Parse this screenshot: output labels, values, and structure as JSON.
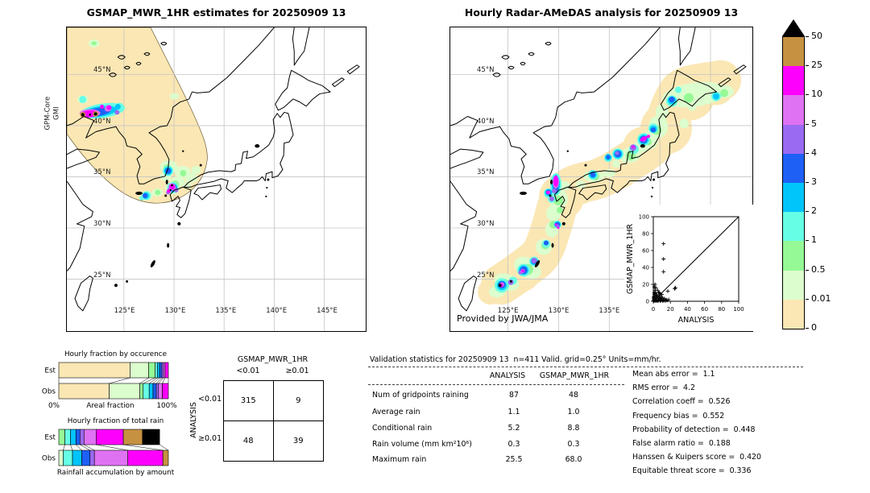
{
  "palette": {
    "wheat": "#fbe7b4",
    "palegreen": "#dcfdcd",
    "lightgreen": "#95f995",
    "aqua": "#66ffe6",
    "skyblue": "#00c5fb",
    "blue": "#1e5ff5",
    "violet": "#9a6af2",
    "orchid": "#df72f2",
    "magenta": "#fd00fd",
    "gold": "#c69140",
    "black": "#000000",
    "gridline": "#c4c4c4"
  },
  "left_map": {
    "title": "GSMAP_MWR_1HR estimates for 20250909 13",
    "sensor_line1": "GPM-Core",
    "sensor_line2": "GMI",
    "lat_ticks": [
      "45°N",
      "40°N",
      "35°N",
      "30°N",
      "25°N"
    ],
    "lon_ticks": [
      "125°E",
      "130°E",
      "135°E",
      "140°E",
      "145°E"
    ]
  },
  "right_map": {
    "title": "Hourly Radar-AMeDAS analysis for 20250909 13",
    "lat_ticks": [
      "45°N",
      "40°N",
      "35°N",
      "30°N",
      "25°N"
    ],
    "lon_ticks": [
      "125°E",
      "130°E",
      "135°E"
    ],
    "credit": "Provided by JWA/JMA"
  },
  "chart_data": [
    {
      "type": "bar",
      "subtype": "stacked-horizontal-fraction",
      "title": "Hourly fraction by occurence",
      "xlabel": "Areal fraction",
      "xlim_labels": [
        "0%",
        "100%"
      ],
      "rows": [
        {
          "label": "Est",
          "width_pct": 100,
          "segments": [
            {
              "color": "wheat",
              "pct": 65
            },
            {
              "color": "palegreen",
              "pct": 17
            },
            {
              "color": "lightgreen",
              "pct": 6
            },
            {
              "color": "aqua",
              "pct": 2
            },
            {
              "color": "skyblue",
              "pct": 2
            },
            {
              "color": "blue",
              "pct": 2
            },
            {
              "color": "violet",
              "pct": 1.5
            },
            {
              "color": "orchid",
              "pct": 1.5
            },
            {
              "color": "magenta",
              "pct": 3
            }
          ]
        },
        {
          "label": "Obs",
          "width_pct": 100,
          "segments": [
            {
              "color": "wheat",
              "pct": 46
            },
            {
              "color": "palegreen",
              "pct": 28
            },
            {
              "color": "lightgreen",
              "pct": 3
            },
            {
              "color": "aqua",
              "pct": 5.5
            },
            {
              "color": "skyblue",
              "pct": 3.5
            },
            {
              "color": "blue",
              "pct": 3
            },
            {
              "color": "violet",
              "pct": 2
            },
            {
              "color": "orchid",
              "pct": 3.5
            },
            {
              "color": "magenta",
              "pct": 5.5
            }
          ]
        }
      ]
    },
    {
      "type": "bar",
      "subtype": "stacked-horizontal-fraction",
      "title": "Hourly fraction of total rain",
      "caption": "Rainfall accumulation by amount",
      "rows": [
        {
          "label": "Est",
          "width_pct": 92,
          "segments": [
            {
              "color": "lightgreen",
              "pct": 6
            },
            {
              "color": "aqua",
              "pct": 5.5
            },
            {
              "color": "skyblue",
              "pct": 5.5
            },
            {
              "color": "blue",
              "pct": 4
            },
            {
              "color": "violet",
              "pct": 4
            },
            {
              "color": "orchid",
              "pct": 12
            },
            {
              "color": "magenta",
              "pct": 27
            },
            {
              "color": "gold",
              "pct": 19
            },
            {
              "color": "black",
              "pct": 17
            }
          ]
        },
        {
          "label": "Obs",
          "width_pct": 100,
          "segments": [
            {
              "color": "palegreen",
              "pct": 4
            },
            {
              "color": "aqua",
              "pct": 8.5
            },
            {
              "color": "skyblue",
              "pct": 8.5
            },
            {
              "color": "blue",
              "pct": 7.5
            },
            {
              "color": "violet",
              "pct": 4
            },
            {
              "color": "orchid",
              "pct": 30.5
            },
            {
              "color": "magenta",
              "pct": 32
            },
            {
              "color": "gold",
              "pct": 5
            }
          ]
        }
      ]
    },
    {
      "type": "table",
      "name": "contingency-table",
      "col_title": "GSMAP_MWR_1HR",
      "row_title": "ANALYSIS",
      "col_labels": [
        "<0.01",
        "≥0.01"
      ],
      "row_labels": [
        "<0.01",
        "≥0.01"
      ],
      "values": [
        [
          "315",
          "9"
        ],
        [
          "48",
          "39"
        ]
      ]
    },
    {
      "type": "scatter",
      "xlabel": "ANALYSIS",
      "ylabel": "GSMAP_MWR_1HR",
      "xlim": [
        0,
        100
      ],
      "ylim": [
        0,
        100
      ],
      "ticks": [
        0,
        20,
        40,
        60,
        80,
        100
      ],
      "diagonal": true,
      "marker": "+",
      "points": [
        [
          12,
          68
        ],
        [
          12,
          50
        ],
        [
          12,
          35
        ],
        [
          2,
          20
        ],
        [
          1,
          17
        ],
        [
          3,
          16
        ],
        [
          2,
          13
        ],
        [
          5,
          13
        ],
        [
          17,
          12
        ],
        [
          25,
          15
        ],
        [
          26,
          16
        ],
        [
          6,
          10
        ],
        [
          3,
          10
        ],
        [
          8,
          9
        ],
        [
          10,
          8
        ],
        [
          7,
          10
        ],
        [
          0.5,
          1
        ],
        [
          0.5,
          3
        ],
        [
          0.5,
          5
        ],
        [
          1,
          0.5
        ],
        [
          1,
          2
        ],
        [
          1,
          4
        ],
        [
          1,
          6
        ],
        [
          1,
          8
        ],
        [
          1,
          10
        ],
        [
          2,
          1
        ],
        [
          2,
          3
        ],
        [
          2,
          6
        ],
        [
          2,
          9
        ],
        [
          3,
          0.5
        ],
        [
          3,
          2
        ],
        [
          3,
          5
        ],
        [
          3,
          8
        ],
        [
          4,
          1
        ],
        [
          4,
          4
        ],
        [
          4,
          7
        ],
        [
          5,
          2
        ],
        [
          5,
          6
        ],
        [
          6,
          1
        ],
        [
          6,
          4
        ],
        [
          7,
          2
        ],
        [
          7,
          6
        ],
        [
          8,
          3
        ],
        [
          9,
          1
        ],
        [
          9,
          5
        ],
        [
          10,
          2
        ],
        [
          11,
          4
        ],
        [
          12,
          1
        ],
        [
          13,
          3
        ],
        [
          14,
          1
        ],
        [
          15,
          2
        ],
        [
          16,
          1
        ],
        [
          18,
          2
        ],
        [
          5,
          0.5
        ],
        [
          8,
          0.5
        ],
        [
          11,
          0.5
        ],
        [
          14,
          0.5
        ]
      ]
    },
    {
      "type": "table",
      "name": "validation-table",
      "title": "Validation statistics for 20250909 13  n=411 Valid. grid=0.25° Units=mm/hr.",
      "columns": [
        "ANALYSIS",
        "GSMAP_MWR_1HR"
      ],
      "rows": [
        {
          "label": "Num of gridpoints raining",
          "values": [
            "87",
            "48"
          ]
        },
        {
          "label": "Average rain",
          "values": [
            "1.1",
            "1.0"
          ]
        },
        {
          "label": "Conditional rain",
          "values": [
            "5.2",
            "8.8"
          ]
        },
        {
          "label": "Rain volume (mm km²10⁶)",
          "values": [
            "0.3",
            "0.3"
          ]
        },
        {
          "label": "Maximum rain",
          "values": [
            "25.5",
            "68.0"
          ]
        }
      ]
    },
    {
      "type": "table",
      "name": "summary-scores",
      "rows": [
        {
          "label": "Mean abs error =",
          "value": "1.1"
        },
        {
          "label": "RMS error =",
          "value": "4.2"
        },
        {
          "label": "Correlation coeff =",
          "value": "0.526"
        },
        {
          "label": "Frequency bias =",
          "value": "0.552"
        },
        {
          "label": "Probability of detection =",
          "value": "0.448"
        },
        {
          "label": "False alarm ratio =",
          "value": "0.188"
        },
        {
          "label": "Hanssen & Kuipers score =",
          "value": "0.420"
        },
        {
          "label": "Equitable threat score =",
          "value": "0.336"
        }
      ]
    },
    {
      "type": "colorbar",
      "units": "mm/hr",
      "ticks": [
        "50",
        "25",
        "10",
        "5",
        "4",
        "3",
        "2",
        "1",
        "0.5",
        "0.01",
        "0"
      ],
      "colors_top_to_bottom": [
        "gold",
        "magenta",
        "orchid",
        "violet",
        "blue",
        "skyblue",
        "aqua",
        "lightgreen",
        "palegreen",
        "wheat"
      ],
      "overflow_color": "black"
    }
  ]
}
